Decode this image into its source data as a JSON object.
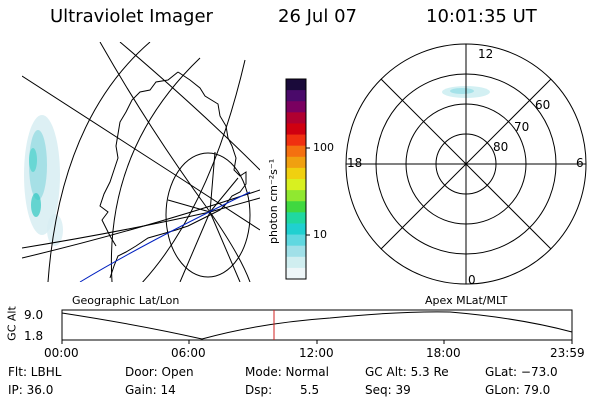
{
  "header": {
    "instrument": "Ultraviolet Imager",
    "date": "26 Jul 07",
    "time": "10:01:35 UT"
  },
  "colorbar": {
    "label": "photon cm⁻²s⁻¹",
    "ticks": [
      "100",
      "10"
    ],
    "colors": [
      "#1a0a3a",
      "#4a0a6a",
      "#7a0060",
      "#b00030",
      "#d00010",
      "#f03010",
      "#f47010",
      "#f0a010",
      "#f0d010",
      "#d8f020",
      "#90e830",
      "#40d840",
      "#20d8a0",
      "#20d0d0",
      "#60d8e0",
      "#a0e0e8",
      "#d0eef0",
      "#eef6f8"
    ]
  },
  "left_map": {
    "label": "Geographic Lat/Lon"
  },
  "polar_map": {
    "label": "Apex MLat/MLT",
    "mlt_labels": {
      "top": "12",
      "left": "18",
      "right": "6",
      "bottom": "0"
    },
    "lat_labels": [
      "80",
      "70",
      "60"
    ]
  },
  "timeline": {
    "axis_label": "GC Alt",
    "y_labels": [
      "9.0",
      "1.8"
    ],
    "x_labels": [
      "00:00",
      "06:00",
      "12:00",
      "18:00",
      "23:59"
    ]
  },
  "status": {
    "flt": "Flt: LBHL",
    "ip": "IP: 36.0",
    "door": "Door: Open",
    "gain": "Gain: 14",
    "mode": "Mode: Normal",
    "dsp_label": "Dsp:",
    "dsp_value": "5.5",
    "gc_alt": "GC Alt: 5.3 Re",
    "seq": "Seq: 39",
    "glat": "GLat: −73.0",
    "glon": "GLon: 79.0"
  }
}
